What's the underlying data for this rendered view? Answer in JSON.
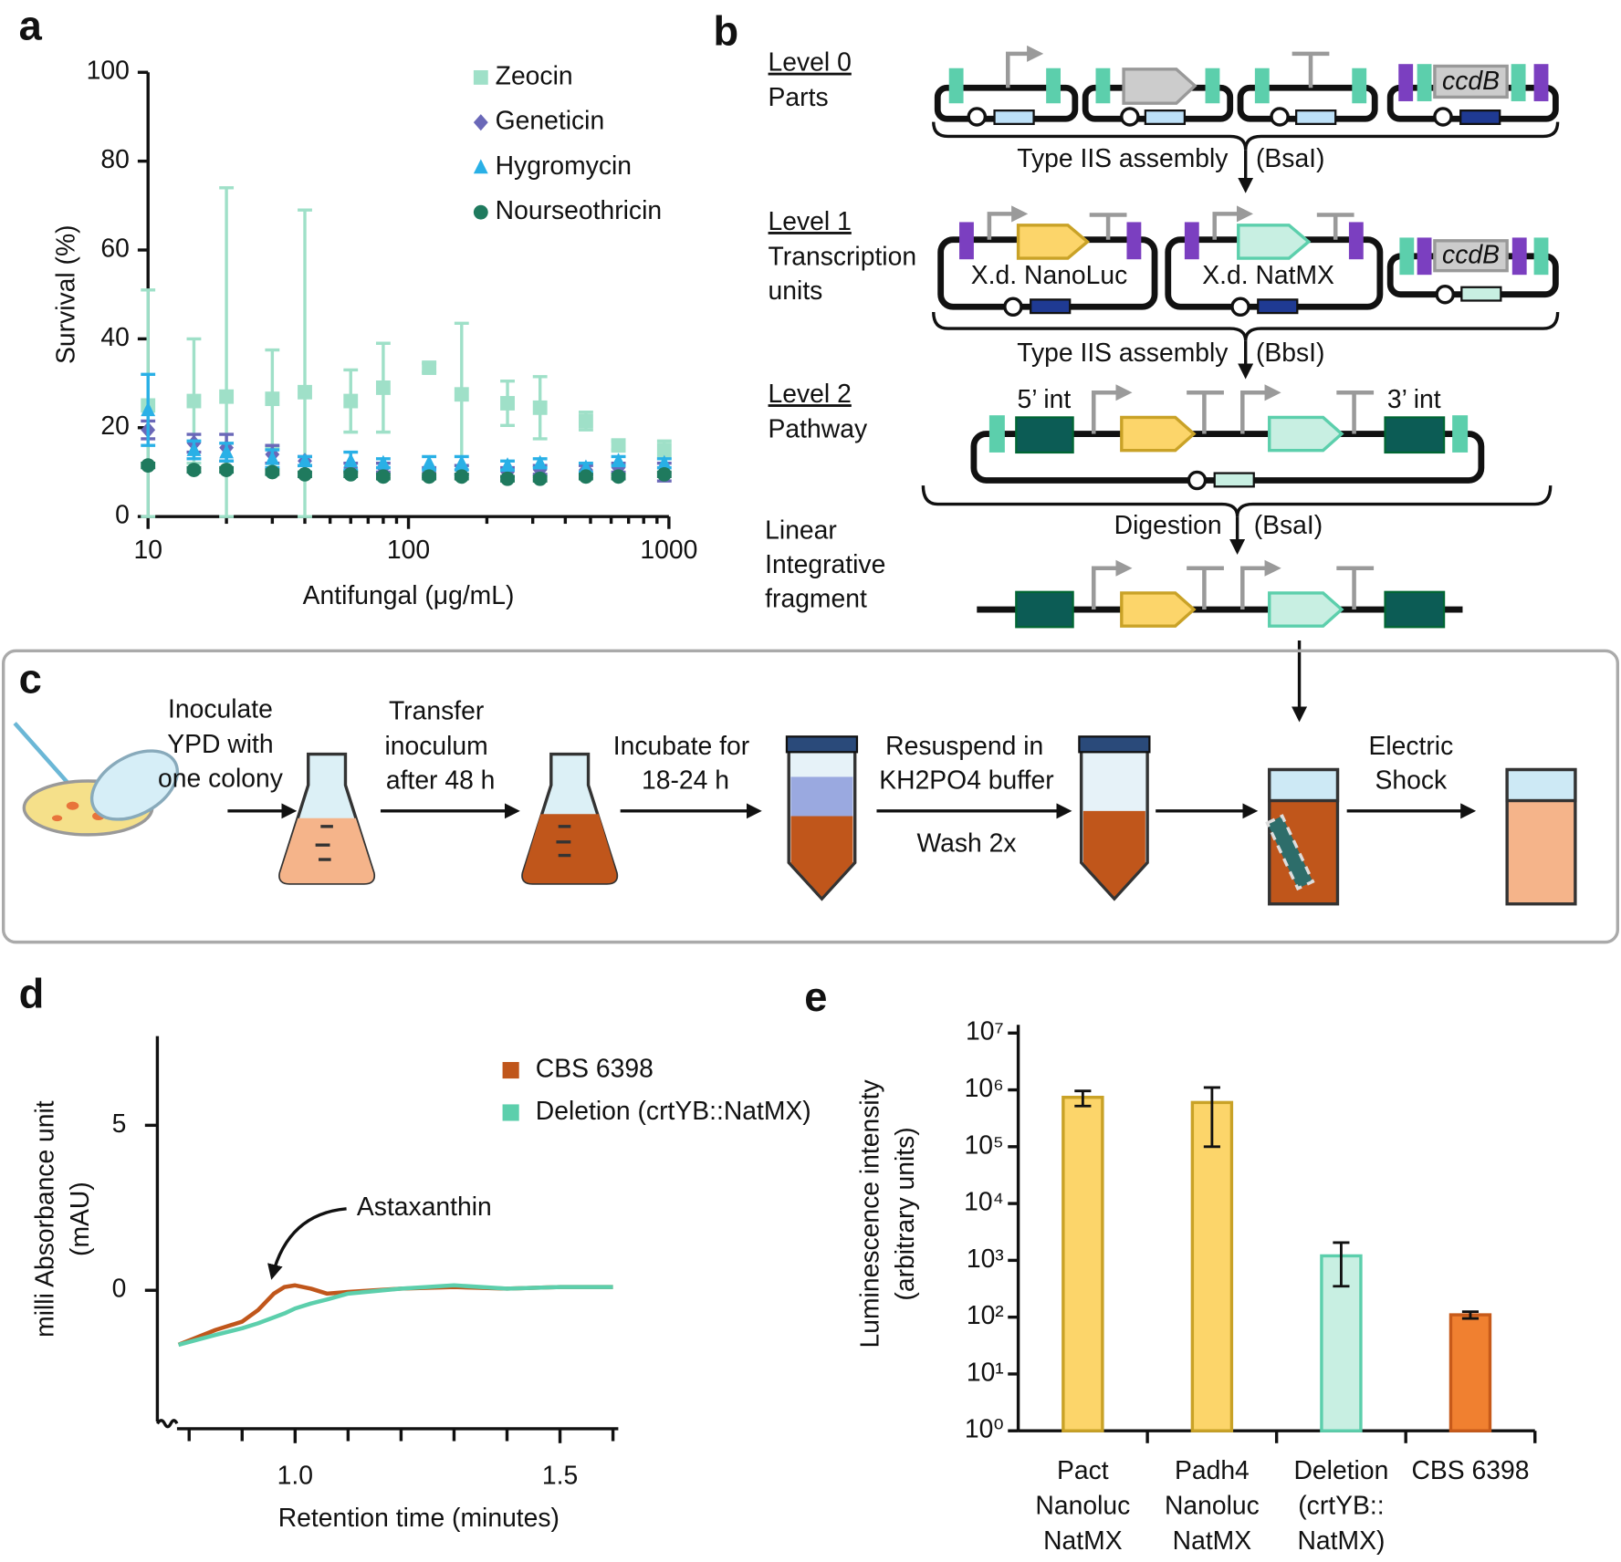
{
  "chart_data": [
    {
      "type": "scatter",
      "panel": "a",
      "xlabel": "Antifungal (μg/mL)",
      "ylabel": "Survival (%)",
      "xscale": "log",
      "xlim": [
        10,
        1000
      ],
      "xticks": [
        10,
        100,
        1000
      ],
      "xminorticks": [
        20,
        30,
        40,
        50,
        60,
        70,
        80,
        90,
        200,
        300,
        400,
        500,
        600,
        700,
        800,
        900
      ],
      "ylim": [
        0,
        100
      ],
      "yticks": [
        0,
        20,
        40,
        60,
        80,
        100
      ],
      "x": [
        10,
        15,
        20,
        30,
        40,
        60,
        80,
        120,
        160,
        240,
        320,
        480,
        640,
        960
      ],
      "series": [
        {
          "name": "Zeocin",
          "color": "#9fe0c8",
          "marker": "square",
          "values": [
            25,
            26,
            27,
            26.5,
            28,
            26,
            29,
            33.5,
            27.5,
            25.5,
            24.5,
            21.5,
            16,
            15
          ],
          "errors": [
            26,
            14,
            47,
            11,
            41,
            7,
            10,
            1,
            16,
            5,
            7,
            2,
            1,
            2
          ]
        },
        {
          "name": "Geneticin",
          "color": "#6a68b8",
          "marker": "diamond",
          "values": [
            19.5,
            16.5,
            15.5,
            14,
            12.5,
            11,
            11,
            10,
            10.5,
            10,
            10.5,
            10.5,
            11,
            10
          ],
          "errors": [
            2,
            2,
            3,
            2,
            1,
            1,
            1,
            1,
            1,
            1,
            1,
            1,
            1,
            2
          ]
        },
        {
          "name": "Hygromycin",
          "color": "#29b0e6",
          "marker": "triangle",
          "values": [
            24,
            15,
            14.5,
            13,
            12.5,
            12.5,
            12,
            12,
            12,
            11.5,
            12,
            11,
            12.5,
            12
          ],
          "errors": [
            8,
            2,
            2,
            2,
            1,
            2,
            1,
            1.5,
            1.5,
            1,
            1,
            1,
            1,
            1
          ]
        },
        {
          "name": "Nourseothricin",
          "color": "#1f7a5e",
          "marker": "circle",
          "values": [
            11.5,
            10.5,
            10.5,
            10,
            9.5,
            9.5,
            9,
            9,
            9,
            8.5,
            8.5,
            9,
            9,
            9.5
          ],
          "errors": [
            0.5,
            0.5,
            0.5,
            0.5,
            0.5,
            0.5,
            0.5,
            0.5,
            0.5,
            0.5,
            0.5,
            0.5,
            0.5,
            0.5
          ]
        }
      ]
    },
    {
      "type": "line",
      "panel": "d",
      "xlabel": "Retention time (minutes)",
      "ylabel": [
        "milli Absorbance unit",
        "(mAU)"
      ],
      "xlim": [
        0.74,
        1.61
      ],
      "xticks": [
        {
          "value": 1,
          "label": "1.0"
        },
        {
          "value": 1.5,
          "label": "1.5"
        }
      ],
      "xminorticks": [
        0.8,
        0.9,
        1.1,
        1.2,
        1.3,
        1.4,
        1.6
      ],
      "ylim": [
        -4.1,
        7.7
      ],
      "yticks": [
        0,
        5
      ],
      "x": [
        0.78,
        0.85,
        0.9,
        0.93,
        0.96,
        0.98,
        1.0,
        1.03,
        1.06,
        1.1,
        1.2,
        1.3,
        1.4,
        1.5,
        1.6
      ],
      "series": [
        {
          "name": "CBS 6398",
          "color": "#c0561b",
          "values": [
            -1.65,
            -1.2,
            -0.95,
            -0.6,
            -0.1,
            0.1,
            0.15,
            0.05,
            -0.1,
            -0.05,
            0.05,
            0.1,
            0.05,
            0.1,
            0.1
          ]
        },
        {
          "name": "Deletion (crtYB::NatMX)",
          "color": "#5ccfac",
          "values": [
            -1.65,
            -1.35,
            -1.15,
            -1.0,
            -0.82,
            -0.7,
            -0.55,
            -0.4,
            -0.28,
            -0.1,
            0.05,
            0.15,
            0.05,
            0.1,
            0.1
          ]
        }
      ],
      "annotation": "Astaxanthin"
    },
    {
      "type": "bar",
      "panel": "e",
      "ylabel": [
        "Luminescence intensity",
        "(arbitrary units)"
      ],
      "yscale": "log",
      "ylim": [
        1,
        10000000
      ],
      "yticks": [
        {
          "value": 1,
          "label": "10⁰"
        },
        {
          "value": 10,
          "label": "10¹"
        },
        {
          "value": 100,
          "label": "10²"
        },
        {
          "value": 1000,
          "label": "10³"
        },
        {
          "value": 10000,
          "label": "10⁴"
        },
        {
          "value": 100000,
          "label": "10⁵"
        },
        {
          "value": 1000000,
          "label": "10⁶"
        },
        {
          "value": 10000000,
          "label": "10⁷"
        }
      ],
      "categories": [
        [
          "Pact",
          "Nanoluc",
          "NatMX"
        ],
        [
          "Padh4",
          "Nanoluc",
          "NatMX"
        ],
        [
          "Deletion",
          "(crtYB::",
          "NatMX)"
        ],
        [
          "CBS 6398"
        ]
      ],
      "values": [
        740000,
        600000,
        1200,
        110
      ],
      "errors": [
        220000,
        500000,
        850,
        15
      ],
      "colors": [
        "#fcd56a",
        "#fcd56a",
        "#c8efe2",
        "#f08030"
      ],
      "edge_colors": [
        "#c9a227",
        "#c9a227",
        "#5ccfac",
        "#c75a1a"
      ]
    }
  ],
  "diagram": {
    "panel": "b",
    "level0": [
      "Level 0",
      "Parts"
    ],
    "ccdB": "ccdB",
    "step1": [
      "Type IIS assembly",
      "(BsaI)"
    ],
    "level1": [
      "Level 1",
      "Transcription",
      "units"
    ],
    "tu1": "X.d. NanoLuc",
    "tu2": "X.d. NatMX",
    "step2": [
      "Type IIS assembly",
      "(BbsI)"
    ],
    "level2": [
      "Level 2",
      "Pathway"
    ],
    "int5": "5’ int",
    "int3": "3’ int",
    "step3": [
      "Digestion",
      "(BsaI)"
    ],
    "linear": [
      "Linear",
      "Integrative",
      "fragment"
    ]
  },
  "protocol": {
    "panel": "c",
    "steps": [
      [
        "Inoculate",
        "YPD with",
        "one colony"
      ],
      [
        "Transfer",
        "inoculum",
        "after 48 h"
      ],
      [
        "Incubate for",
        "18-24 h"
      ],
      [
        "Resuspend in",
        "KH2PO4 buffer"
      ],
      [
        "Electric",
        "Shock"
      ]
    ],
    "wash": "Wash 2x"
  }
}
